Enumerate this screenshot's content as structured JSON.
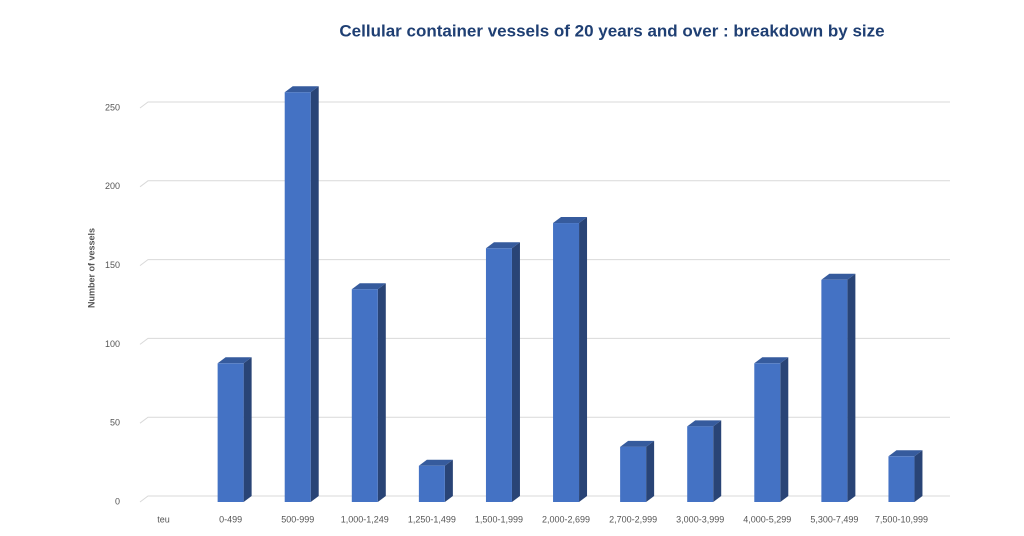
{
  "chart_data": {
    "type": "bar3d",
    "title": "Cellular container vessels of 20 years and over : breakdown by size",
    "y_label": "Number of vessels",
    "categories": [
      "teu",
      "0-499",
      "500-999",
      "1,000-1,249",
      "1,250-1,499",
      "1,500-1,999",
      "2,000-2,699",
      "2,700-2,999",
      "3,000-3,999",
      "4,000-5,299",
      "5,300-7,499",
      "7,500-10,999"
    ],
    "values": [
      null,
      88,
      260,
      135,
      23,
      161,
      177,
      35,
      48,
      88,
      141,
      29
    ],
    "color": "#4472c4",
    "ylim": [
      0,
      250
    ],
    "yticks": [
      0,
      50,
      100,
      150,
      200,
      250
    ],
    "grid": true
  }
}
